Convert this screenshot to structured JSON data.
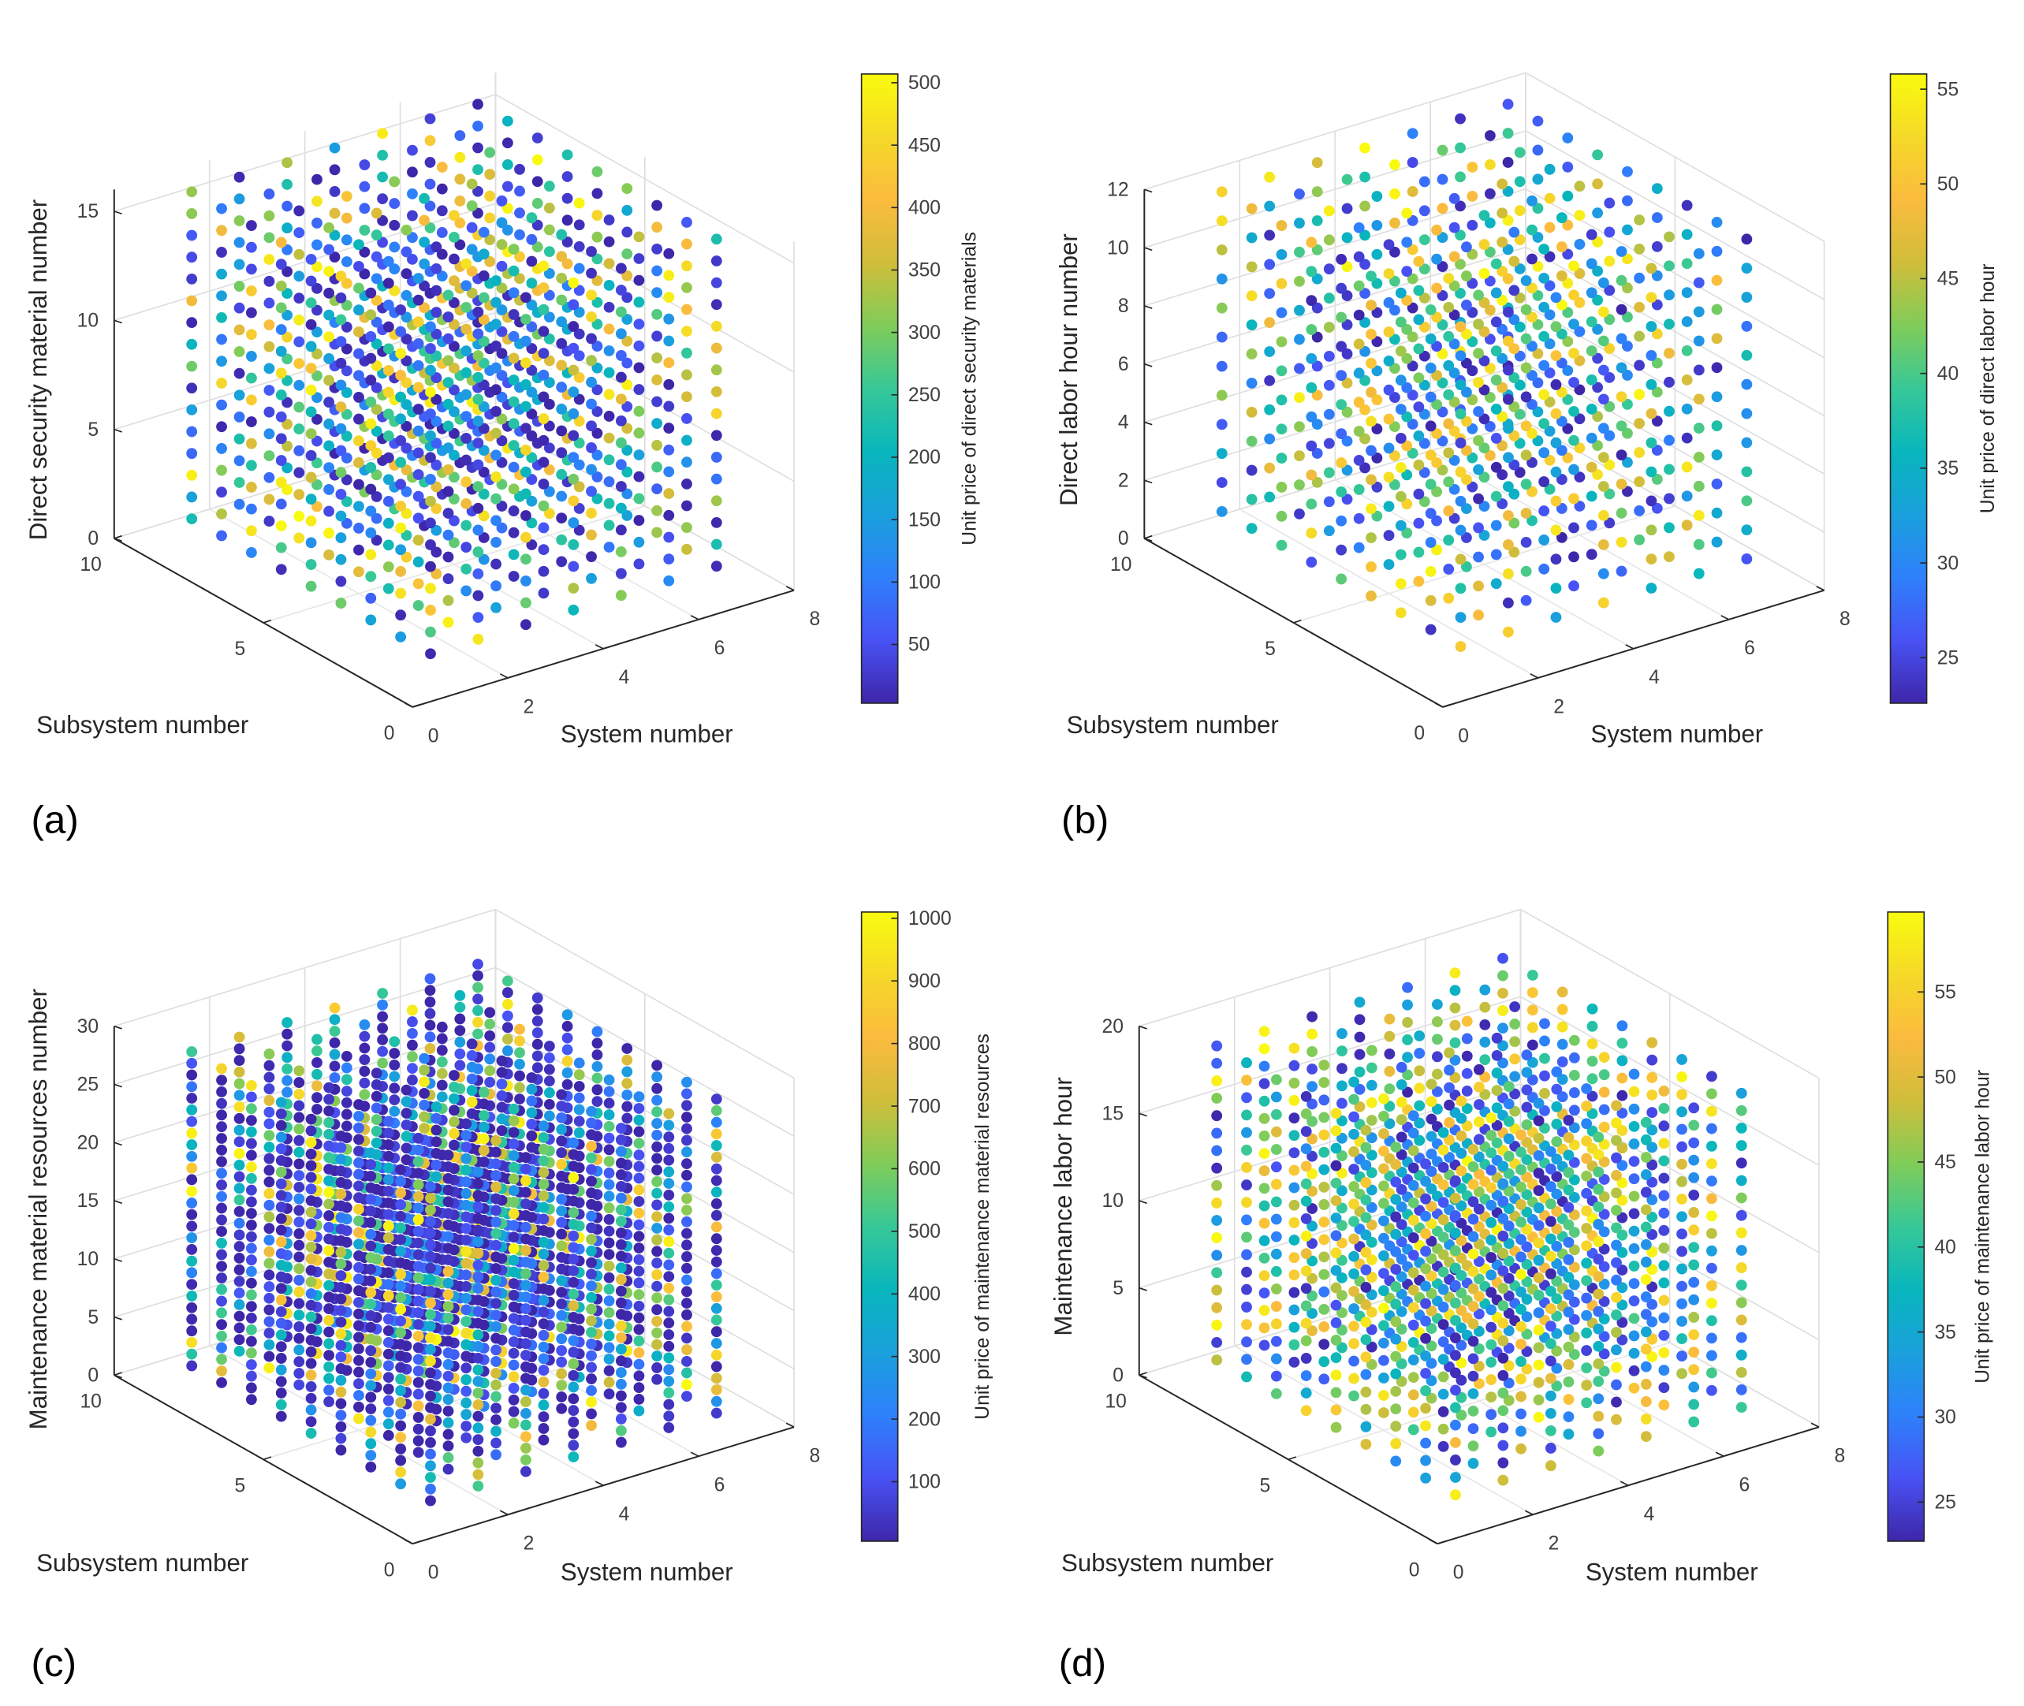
{
  "chart_data": [
    {
      "type": "scatter3d",
      "panel_label": "(a)",
      "xlabel": "System number",
      "ylabel": "Subsystem number",
      "zlabel": "Direct security material number",
      "colorbar_label": "Unit price of direct security materials",
      "xlim": [
        0,
        8
      ],
      "ylim": [
        0,
        10
      ],
      "zlim": [
        0,
        16
      ],
      "xticks": [
        0,
        2,
        4,
        6,
        8
      ],
      "yticks": [
        0,
        5,
        10
      ],
      "zticks": [
        0,
        5,
        10,
        15
      ],
      "clim": [
        3,
        507
      ],
      "cticks": [
        50,
        100,
        150,
        200,
        250,
        300,
        350,
        400,
        450,
        500
      ],
      "points_grid": {
        "x": [
          1,
          7
        ],
        "y": [
          1,
          9
        ],
        "z": [
          1,
          16
        ]
      },
      "colormap": "parula",
      "grid": true
    },
    {
      "type": "scatter3d",
      "panel_label": "(b)",
      "xlabel": "System number",
      "ylabel": "Subsystem number",
      "zlabel": "Direct labor hour number",
      "colorbar_label": "Unit price of direct labor hour",
      "xlim": [
        0,
        8
      ],
      "ylim": [
        0,
        10
      ],
      "zlim": [
        0,
        12
      ],
      "xticks": [
        0,
        2,
        4,
        6,
        8
      ],
      "yticks": [
        0,
        5,
        10
      ],
      "zticks": [
        0,
        2,
        4,
        6,
        8,
        10,
        12
      ],
      "clim": [
        22.6,
        55.8
      ],
      "cticks": [
        25,
        30,
        35,
        40,
        45,
        50,
        55
      ],
      "points_grid": {
        "x": [
          1,
          7
        ],
        "y": [
          1,
          9
        ],
        "z": [
          1,
          12
        ]
      },
      "colormap": "parula",
      "grid": true
    },
    {
      "type": "scatter3d",
      "panel_label": "(c)",
      "xlabel": "System number",
      "ylabel": "Subsystem number",
      "zlabel": "Maintenance material resources number",
      "colorbar_label": "Unit price of maintenance material resources",
      "xlim": [
        0,
        8
      ],
      "ylim": [
        0,
        10
      ],
      "zlim": [
        0,
        30
      ],
      "xticks": [
        0,
        2,
        4,
        6,
        8
      ],
      "yticks": [
        0,
        5,
        10
      ],
      "zticks": [
        0,
        5,
        10,
        15,
        20,
        25,
        30
      ],
      "clim": [
        5,
        1010
      ],
      "cticks": [
        100,
        200,
        300,
        400,
        500,
        600,
        700,
        800,
        900,
        1000
      ],
      "points_grid": {
        "x": [
          1,
          7
        ],
        "y": [
          1,
          9
        ],
        "z": [
          1,
          28
        ]
      },
      "colormap": "parula",
      "grid": true
    },
    {
      "type": "scatter3d",
      "panel_label": "(d)",
      "xlabel": "System number",
      "ylabel": "Subsystem number",
      "zlabel": "Maintenance labor hour",
      "colorbar_label": "Unit price of maintenance labor hour",
      "xlim": [
        0,
        8
      ],
      "ylim": [
        0,
        10
      ],
      "zlim": [
        0,
        20
      ],
      "xticks": [
        0,
        2,
        4,
        6,
        8
      ],
      "yticks": [
        0,
        5,
        10
      ],
      "zticks": [
        0,
        5,
        10,
        15,
        20
      ],
      "clim": [
        22.7,
        59.7
      ],
      "cticks": [
        25,
        30,
        35,
        40,
        45,
        50,
        55
      ],
      "points_grid": {
        "x": [
          1,
          7
        ],
        "y": [
          1,
          9
        ],
        "z": [
          1,
          19
        ]
      },
      "colormap": "parula",
      "grid": true
    }
  ]
}
